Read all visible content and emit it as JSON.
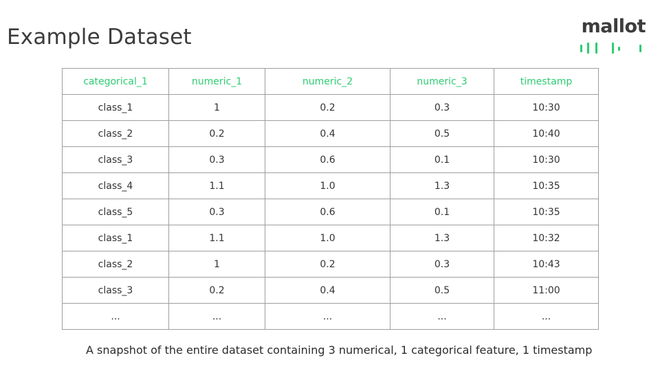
{
  "slide": {
    "title": "Example Dataset",
    "caption": "A snapshot of the entire dataset containing 3 numerical, 1 categorical feature, 1 timestamp"
  },
  "logo": {
    "text": "mallot",
    "accent_color": "#2ecc71"
  },
  "table": {
    "header_color": "#2ecc71",
    "columns": [
      "categorical_1",
      "numeric_1",
      "numeric_2",
      "numeric_3",
      "timestamp"
    ],
    "rows": [
      [
        "class_1",
        "1",
        "0.2",
        "0.3",
        "10:30"
      ],
      [
        "class_2",
        "0.2",
        "0.4",
        "0.5",
        "10:40"
      ],
      [
        "class_3",
        "0.3",
        "0.6",
        "0.1",
        "10:30"
      ],
      [
        "class_4",
        "1.1",
        "1.0",
        "1.3",
        "10:35"
      ],
      [
        "class_5",
        "0.3",
        "0.6",
        "0.1",
        "10:35"
      ],
      [
        "class_1",
        "1.1",
        "1.0",
        "1.3",
        "10:32"
      ],
      [
        "class_2",
        "1",
        "0.2",
        "0.3",
        "10:43"
      ],
      [
        "class_3",
        "0.2",
        "0.4",
        "0.5",
        "11:00"
      ],
      [
        "...",
        "...",
        "...",
        "...",
        "..."
      ]
    ]
  }
}
